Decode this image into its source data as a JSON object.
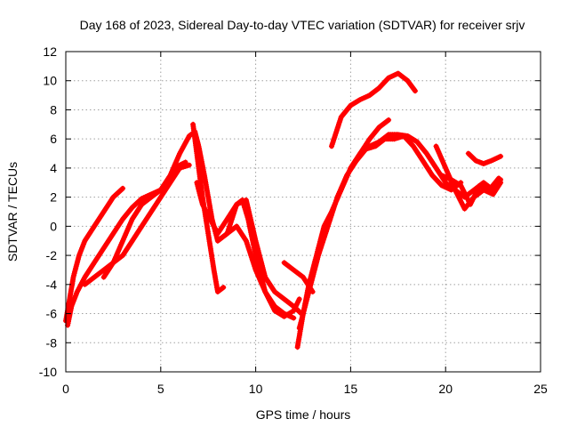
{
  "chart_data": {
    "type": "scatter",
    "title": "Day 168 of 2023, Sidereal Day-to-day VTEC variation (SDTVAR) for receiver srjv",
    "xlabel": "GPS time / hours",
    "ylabel": "SDTVAR / TECUs",
    "xlim": [
      0,
      25
    ],
    "ylim": [
      -10,
      12
    ],
    "xticks": [
      "0",
      "5",
      "10",
      "15",
      "20",
      "25"
    ],
    "yticks": [
      "-10",
      "-8",
      "-6",
      "-4",
      "-2",
      "0",
      "2",
      "4",
      "6",
      "8",
      "10",
      "12"
    ],
    "grid": true,
    "marker": "+",
    "color": "#ff0000",
    "series": [
      {
        "x": [
          0.0,
          0.2,
          0.4,
          0.7,
          1.0,
          1.5,
          2.0,
          2.5,
          3.0
        ],
        "y": [
          -6.5,
          -5.0,
          -3.5,
          -2.0,
          -1.0,
          0.0,
          1.0,
          2.0,
          2.6
        ]
      },
      {
        "x": [
          0.1,
          0.3,
          0.6,
          1.0,
          1.5,
          2.0,
          2.5,
          3.0,
          3.5,
          4.0,
          4.5,
          5.0,
          5.5,
          6.0,
          6.3
        ],
        "y": [
          -6.8,
          -5.5,
          -4.5,
          -3.5,
          -2.5,
          -1.5,
          -0.5,
          0.5,
          1.3,
          1.9,
          2.2,
          2.5,
          3.4,
          4.2,
          4.4
        ]
      },
      {
        "x": [
          1.0,
          2.0,
          3.0,
          3.5,
          4.0,
          4.5,
          5.0,
          5.5,
          6.0,
          6.5
        ],
        "y": [
          -4.0,
          -3.0,
          -2.0,
          -1.0,
          0.0,
          1.0,
          2.0,
          3.0,
          4.0,
          4.2
        ]
      },
      {
        "x": [
          2.0,
          2.5,
          3.0,
          3.5,
          4.0,
          4.5,
          5.0,
          5.5,
          6.0,
          6.5,
          6.8
        ],
        "y": [
          -3.5,
          -2.5,
          -1.0,
          0.5,
          1.5,
          2.0,
          2.5,
          3.5,
          5.0,
          6.2,
          6.5
        ]
      },
      {
        "x": [
          6.7,
          6.9,
          7.2,
          7.5,
          7.8,
          8.0,
          8.3
        ],
        "y": [
          7.0,
          5.0,
          2.0,
          -0.5,
          -3.0,
          -4.5,
          -4.2
        ]
      },
      {
        "x": [
          6.8,
          7.0,
          7.3,
          7.7,
          8.0,
          8.5,
          9.0,
          9.3,
          9.6,
          10.0,
          10.5,
          11.0,
          11.5,
          12.0,
          12.3
        ],
        "y": [
          6.5,
          5.5,
          3.5,
          0.5,
          -1.0,
          -0.5,
          1.5,
          1.8,
          0.5,
          -2.0,
          -4.5,
          -5.8,
          -6.2,
          -5.8,
          -5.0
        ]
      },
      {
        "x": [
          6.9,
          7.2,
          7.6,
          8.0,
          8.5,
          9.0,
          9.5,
          10.0,
          10.5,
          11.0,
          11.5,
          12.0,
          12.4
        ],
        "y": [
          3.0,
          1.5,
          0.5,
          -0.5,
          0.5,
          1.5,
          1.8,
          -1.0,
          -3.5,
          -4.5,
          -5.0,
          -5.5,
          -6.0
        ]
      },
      {
        "x": [
          8.0,
          8.5,
          9.0,
          9.5,
          10.0,
          10.5,
          11.0,
          11.5,
          12.0
        ],
        "y": [
          -1.0,
          -0.5,
          0.0,
          -1.0,
          -3.0,
          -4.5,
          -5.5,
          -6.0,
          -6.3
        ]
      },
      {
        "x": [
          11.5,
          12.0,
          12.5,
          13.0
        ],
        "y": [
          -2.5,
          -3.0,
          -3.5,
          -4.5
        ]
      },
      {
        "x": [
          12.2,
          12.5,
          12.8,
          13.2,
          13.6,
          14.0,
          14.5,
          15.0,
          15.5,
          16.0,
          16.5,
          17.0
        ],
        "y": [
          -8.3,
          -6.0,
          -4.0,
          -2.0,
          0.0,
          1.0,
          2.5,
          4.0,
          5.0,
          6.0,
          6.8,
          7.3
        ]
      },
      {
        "x": [
          12.3,
          12.8,
          13.3,
          13.8,
          14.3,
          14.8,
          15.3,
          15.8,
          16.3,
          16.8,
          17.3,
          17.8,
          18.3,
          18.8,
          19.3,
          19.8,
          20.3,
          20.8
        ],
        "y": [
          -7.0,
          -4.5,
          -2.0,
          0.0,
          2.0,
          3.5,
          4.5,
          5.3,
          5.5,
          6.0,
          6.0,
          6.2,
          5.5,
          4.5,
          3.5,
          2.8,
          2.5,
          3.0
        ]
      },
      {
        "x": [
          14.0,
          14.5,
          15.0,
          15.5,
          16.0,
          16.5,
          17.0,
          17.5,
          18.0,
          18.4
        ],
        "y": [
          5.5,
          7.5,
          8.3,
          8.7,
          9.0,
          9.5,
          10.2,
          10.5,
          10.0,
          9.3
        ]
      },
      {
        "x": [
          15.0,
          15.5,
          16.0,
          16.5,
          17.0,
          17.5,
          18.0,
          18.5,
          19.0,
          19.5,
          20.0,
          20.5,
          21.0,
          21.5,
          22.0,
          22.5,
          22.9
        ],
        "y": [
          4.0,
          5.0,
          5.5,
          5.8,
          6.3,
          6.3,
          6.2,
          5.8,
          5.0,
          4.0,
          3.0,
          2.5,
          2.0,
          2.5,
          3.0,
          2.5,
          3.2
        ]
      },
      {
        "x": [
          19.5,
          20.0,
          20.5,
          21.0,
          21.5,
          22.0,
          22.5,
          22.9
        ],
        "y": [
          5.5,
          4.0,
          2.5,
          1.2,
          2.0,
          2.5,
          2.2,
          3.0
        ]
      },
      {
        "x": [
          19.8,
          20.3,
          20.8,
          21.3,
          21.8,
          22.3,
          22.8
        ],
        "y": [
          3.5,
          3.2,
          2.8,
          1.5,
          2.8,
          2.5,
          3.3
        ]
      },
      {
        "x": [
          21.2,
          21.6,
          22.0,
          22.4,
          22.9
        ],
        "y": [
          5.0,
          4.5,
          4.3,
          4.5,
          4.8
        ]
      }
    ]
  }
}
